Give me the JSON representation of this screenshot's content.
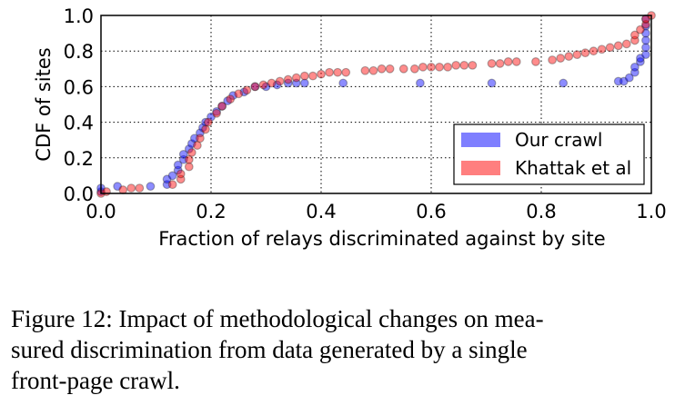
{
  "chart_data": {
    "type": "scatter",
    "title": "",
    "xlabel": "Fraction of relays discriminated against by site",
    "ylabel": "CDF of sites",
    "xlim": [
      0.0,
      1.0
    ],
    "ylim": [
      0.0,
      1.0
    ],
    "xticks": [
      "0.0",
      "0.2",
      "0.4",
      "0.6",
      "0.8",
      "1.0"
    ],
    "yticks": [
      "0.0",
      "0.2",
      "0.4",
      "0.6",
      "0.8",
      "1.0"
    ],
    "grid": true,
    "legend_position": "lower-right",
    "series": [
      {
        "name": "Our crawl",
        "color": "#0000ff",
        "points": [
          [
            0,
            0.01
          ],
          [
            0,
            0.03
          ],
          [
            0.03,
            0.04
          ],
          [
            0.09,
            0.04
          ],
          [
            0.12,
            0.05
          ],
          [
            0.12,
            0.08
          ],
          [
            0.13,
            0.1
          ],
          [
            0.14,
            0.13
          ],
          [
            0.14,
            0.16
          ],
          [
            0.15,
            0.19
          ],
          [
            0.15,
            0.22
          ],
          [
            0.16,
            0.25
          ],
          [
            0.165,
            0.28
          ],
          [
            0.17,
            0.31
          ],
          [
            0.18,
            0.34
          ],
          [
            0.185,
            0.37
          ],
          [
            0.19,
            0.4
          ],
          [
            0.2,
            0.43
          ],
          [
            0.21,
            0.46
          ],
          [
            0.22,
            0.49
          ],
          [
            0.23,
            0.52
          ],
          [
            0.24,
            0.55
          ],
          [
            0.26,
            0.57
          ],
          [
            0.28,
            0.6
          ],
          [
            0.3,
            0.6
          ],
          [
            0.32,
            0.61
          ],
          [
            0.34,
            0.62
          ],
          [
            0.355,
            0.62
          ],
          [
            0.37,
            0.62
          ],
          [
            0.44,
            0.62
          ],
          [
            0.58,
            0.62
          ],
          [
            0.71,
            0.62
          ],
          [
            0.84,
            0.62
          ],
          [
            0.94,
            0.63
          ],
          [
            0.95,
            0.63
          ],
          [
            0.96,
            0.65
          ],
          [
            0.97,
            0.68
          ],
          [
            0.97,
            0.71
          ],
          [
            0.98,
            0.74
          ],
          [
            0.98,
            0.76
          ],
          [
            0.99,
            0.78
          ],
          [
            0.99,
            0.82
          ],
          [
            0.99,
            0.86
          ],
          [
            0.99,
            0.9
          ],
          [
            0.99,
            0.94
          ],
          [
            0.99,
            0.98
          ]
        ]
      },
      {
        "name": "Khattak et al",
        "color": "#ff0000",
        "points": [
          [
            0,
            0.0
          ],
          [
            0.01,
            0.01
          ],
          [
            0.04,
            0.02
          ],
          [
            0.055,
            0.03
          ],
          [
            0.07,
            0.03
          ],
          [
            0.13,
            0.05
          ],
          [
            0.145,
            0.08
          ],
          [
            0.145,
            0.11
          ],
          [
            0.16,
            0.15
          ],
          [
            0.16,
            0.19
          ],
          [
            0.165,
            0.23
          ],
          [
            0.175,
            0.27
          ],
          [
            0.18,
            0.31
          ],
          [
            0.19,
            0.36
          ],
          [
            0.195,
            0.4
          ],
          [
            0.21,
            0.45
          ],
          [
            0.22,
            0.49
          ],
          [
            0.235,
            0.53
          ],
          [
            0.25,
            0.56
          ],
          [
            0.265,
            0.58
          ],
          [
            0.28,
            0.6
          ],
          [
            0.295,
            0.61
          ],
          [
            0.31,
            0.62
          ],
          [
            0.325,
            0.63
          ],
          [
            0.34,
            0.64
          ],
          [
            0.355,
            0.65
          ],
          [
            0.37,
            0.66
          ],
          [
            0.385,
            0.66
          ],
          [
            0.4,
            0.67
          ],
          [
            0.415,
            0.68
          ],
          [
            0.43,
            0.68
          ],
          [
            0.445,
            0.68
          ],
          [
            0.48,
            0.69
          ],
          [
            0.495,
            0.69
          ],
          [
            0.51,
            0.7
          ],
          [
            0.525,
            0.7
          ],
          [
            0.55,
            0.7
          ],
          [
            0.57,
            0.7
          ],
          [
            0.585,
            0.71
          ],
          [
            0.6,
            0.71
          ],
          [
            0.615,
            0.71
          ],
          [
            0.63,
            0.71
          ],
          [
            0.645,
            0.72
          ],
          [
            0.66,
            0.72
          ],
          [
            0.675,
            0.72
          ],
          [
            0.71,
            0.73
          ],
          [
            0.725,
            0.73
          ],
          [
            0.74,
            0.74
          ],
          [
            0.755,
            0.74
          ],
          [
            0.79,
            0.74
          ],
          [
            0.82,
            0.75
          ],
          [
            0.835,
            0.76
          ],
          [
            0.85,
            0.77
          ],
          [
            0.865,
            0.78
          ],
          [
            0.88,
            0.79
          ],
          [
            0.895,
            0.8
          ],
          [
            0.91,
            0.81
          ],
          [
            0.925,
            0.82
          ],
          [
            0.94,
            0.83
          ],
          [
            0.955,
            0.84
          ],
          [
            0.97,
            0.86
          ],
          [
            0.97,
            0.89
          ],
          [
            0.98,
            0.92
          ],
          [
            0.99,
            0.95
          ],
          [
            0.99,
            0.98
          ],
          [
            1.0,
            1.0
          ]
        ]
      }
    ]
  },
  "caption": {
    "lines": [
      "Figure 12: Impact of methodological changes on mea-",
      "sured discrimination from data generated by a single",
      "front-page crawl."
    ]
  }
}
